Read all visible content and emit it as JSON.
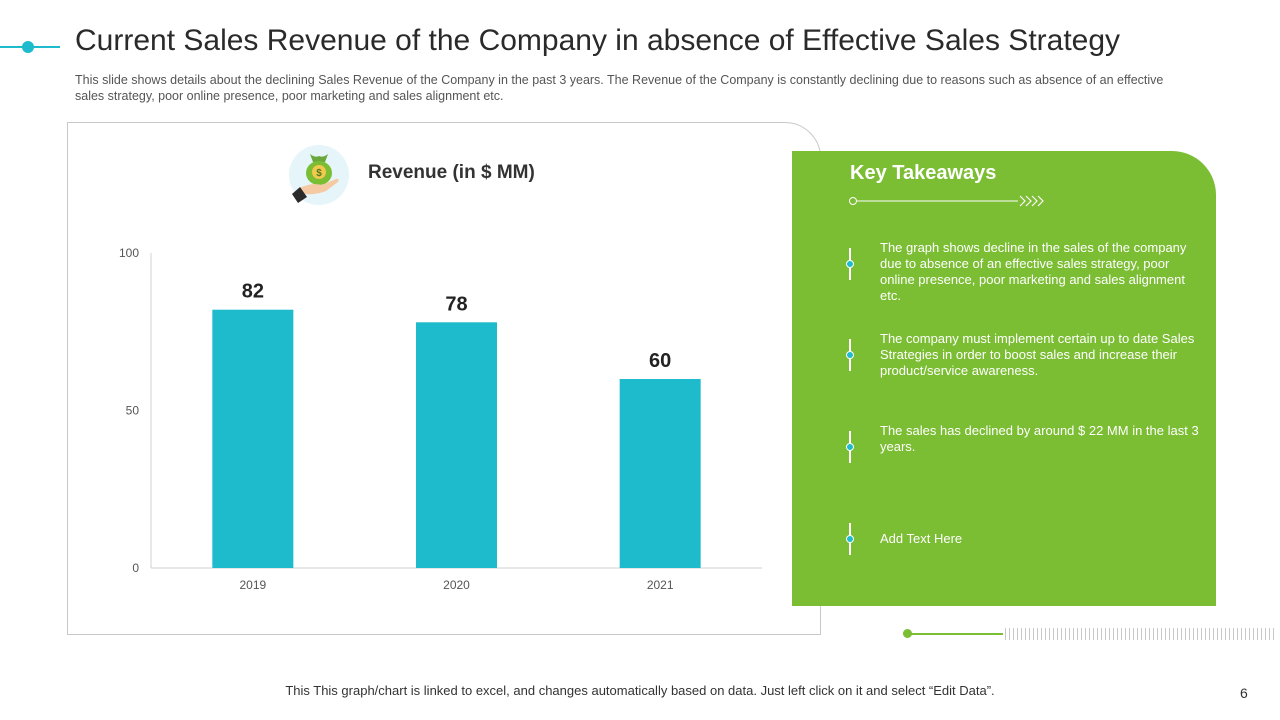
{
  "slide": {
    "title": "Current Sales Revenue of the Company in absence of Effective Sales Strategy",
    "subtitle": "This slide shows details about the declining Sales Revenue of the Company in the past 3 years. The Revenue of the Company is constantly declining due to reasons such as absence of an effective sales strategy, poor online presence, poor marketing and sales alignment etc.",
    "footer": "This This graph/chart is linked to excel, and changes automatically based on data. Just left click on it and select “Edit Data”.",
    "page_number": "6"
  },
  "chart_data": {
    "type": "bar",
    "title": "Revenue (in $ MM)",
    "categories": [
      "2019",
      "2020",
      "2021"
    ],
    "values": [
      82,
      78,
      60
    ],
    "ylim": [
      0,
      100
    ],
    "yticks": [
      0,
      50,
      100
    ],
    "xlabel": "",
    "ylabel": "",
    "bar_color": "#1ebbcc",
    "show_data_labels": true
  },
  "takeaways": {
    "title": "Key Takeaways",
    "items": [
      "The graph shows decline in the sales of the company due to absence of an effective sales strategy, poor online presence, poor marketing and sales alignment etc.",
      "The company must implement certain up to date Sales Strategies in order to boost sales and increase their product/service awareness.",
      "The sales has declined by around $ 22 MM in the last 3 years.",
      "Add Text Here"
    ]
  },
  "colors": {
    "accent": "#1ebbcc",
    "green": "#7bbd33"
  },
  "icons": {
    "chart_icon": "money-bag-hand-icon"
  }
}
